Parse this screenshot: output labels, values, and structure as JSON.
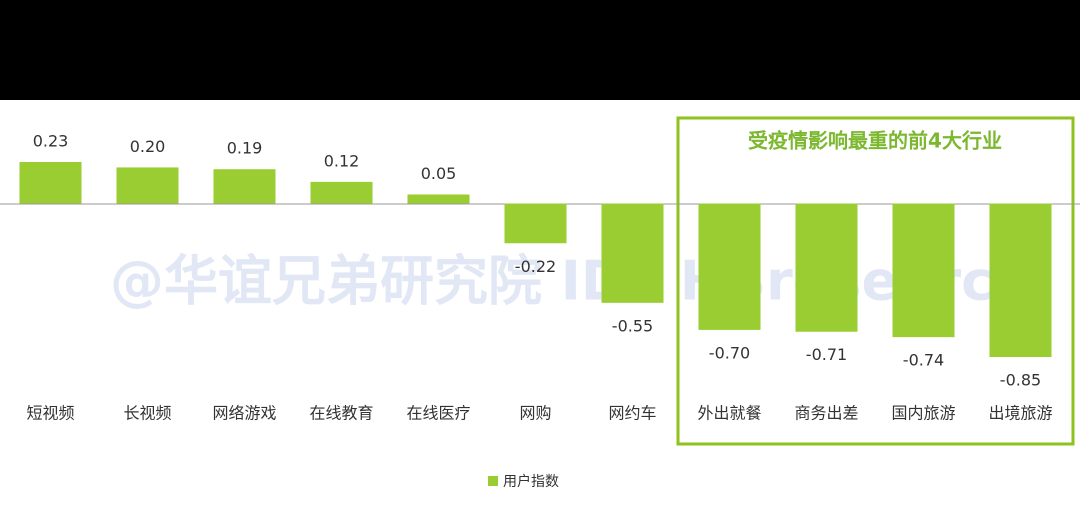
{
  "chart_data": {
    "type": "bar",
    "categories": [
      "短视频",
      "长视频",
      "网络游戏",
      "在线教育",
      "在线医疗",
      "网购",
      "网约车",
      "外出就餐",
      "商务出差",
      "国内旅游",
      "出境旅游"
    ],
    "series": [
      {
        "name": "用户指数",
        "color": "#9acd32",
        "values": [
          0.23,
          0.2,
          0.19,
          0.12,
          0.05,
          -0.22,
          -0.55,
          -0.7,
          -0.71,
          -0.74,
          -0.85
        ],
        "value_labels": [
          "0.23",
          "0.20",
          "0.19",
          "0.12",
          "0.05",
          "-0.22",
          "-0.55",
          "-0.70",
          "-0.71",
          "-0.74",
          "-0.85"
        ]
      }
    ],
    "annotation": "受疫情影响最重的前4大行业",
    "watermark": "@华谊兄弟研究院 ID：HBresearch"
  }
}
